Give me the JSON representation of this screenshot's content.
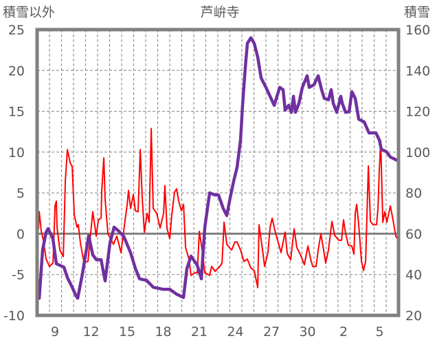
{
  "chart_data": {
    "type": "line",
    "title": "芦峅寺",
    "ylabel_left": "積雪以外",
    "ylabel_right": "積雪",
    "xlabel": "",
    "x_unit": "days since Dec 9",
    "xlim": [
      -1.49,
      28.57
    ],
    "ylim_left": [
      -10,
      25
    ],
    "ylim_right": [
      20,
      160
    ],
    "yticks_left": [
      "-10",
      "-5",
      "0",
      "5",
      "10",
      "15",
      "20",
      "25"
    ],
    "yticks_right": [
      "20",
      "40",
      "60",
      "80",
      "100",
      "120",
      "140",
      "160"
    ],
    "xticks": [
      {
        "label": "9",
        "x": 0
      },
      {
        "label": "12",
        "x": 3
      },
      {
        "label": "15",
        "x": 6
      },
      {
        "label": "18",
        "x": 9
      },
      {
        "label": "21",
        "x": 12
      },
      {
        "label": "24",
        "x": 15
      },
      {
        "label": "27",
        "x": 18
      },
      {
        "label": "30",
        "x": 21
      },
      {
        "label": "2",
        "x": 24
      },
      {
        "label": "5",
        "x": 27
      }
    ],
    "grid": true,
    "colors": {
      "left_series": "#ff0000",
      "right_series": "#7030a0",
      "frame": "#808080",
      "grid": "#808080"
    },
    "series": [
      {
        "name": "積雪以外",
        "axis": "left",
        "points": [
          [
            -1.49,
            1.7
          ],
          [
            -1.37,
            0.6
          ],
          [
            -1.31,
            2.7
          ],
          [
            -1.14,
            0.3
          ],
          [
            -0.97,
            -0.8
          ],
          [
            -0.74,
            -3.1
          ],
          [
            -0.46,
            -4
          ],
          [
            -0.17,
            -3.6
          ],
          [
            0,
            3.4
          ],
          [
            0.11,
            4
          ],
          [
            0.17,
            0.8
          ],
          [
            0.4,
            -2
          ],
          [
            0.69,
            -2.8
          ],
          [
            0.86,
            6.5
          ],
          [
            1.03,
            10.3
          ],
          [
            1.26,
            8.7
          ],
          [
            1.43,
            8.2
          ],
          [
            1.6,
            2.3
          ],
          [
            1.83,
            0.8
          ],
          [
            1.94,
            1.1
          ],
          [
            2.11,
            -1.1
          ],
          [
            2.4,
            -3.5
          ],
          [
            2.74,
            -3.4
          ],
          [
            3.14,
            2.7
          ],
          [
            3.43,
            -0.3
          ],
          [
            3.6,
            1.7
          ],
          [
            3.83,
            1.9
          ],
          [
            3.89,
            5.3
          ],
          [
            4.06,
            9.3
          ],
          [
            4.17,
            4.2
          ],
          [
            4.4,
            0
          ],
          [
            4.69,
            -0.8
          ],
          [
            4.86,
            -1.3
          ],
          [
            5.14,
            -0.3
          ],
          [
            5.49,
            -2.3
          ],
          [
            5.71,
            0.3
          ],
          [
            6,
            3.6
          ],
          [
            6.11,
            5.3
          ],
          [
            6.29,
            3.1
          ],
          [
            6.51,
            4.8
          ],
          [
            6.69,
            2.8
          ],
          [
            6.91,
            2.7
          ],
          [
            7.09,
            10.3
          ],
          [
            7.26,
            4.2
          ],
          [
            7.43,
            0.2
          ],
          [
            7.66,
            2.5
          ],
          [
            7.83,
            1.4
          ],
          [
            8,
            12.9
          ],
          [
            8.17,
            3.1
          ],
          [
            8.46,
            2.5
          ],
          [
            8.74,
            0.7
          ],
          [
            9.03,
            2.5
          ],
          [
            9.14,
            5.9
          ],
          [
            9.31,
            0.7
          ],
          [
            9.54,
            -0.6
          ],
          [
            9.71,
            2.3
          ],
          [
            9.94,
            5.1
          ],
          [
            10.11,
            5.5
          ],
          [
            10.29,
            4
          ],
          [
            10.51,
            2.8
          ],
          [
            10.69,
            3.6
          ],
          [
            10.86,
            -1.7
          ],
          [
            11.14,
            -3.1
          ],
          [
            11.31,
            -5.1
          ],
          [
            11.6,
            -4.8
          ],
          [
            11.83,
            -4.8
          ],
          [
            12,
            0.3
          ],
          [
            12.29,
            -2.5
          ],
          [
            12.46,
            -4.8
          ],
          [
            12.86,
            -5.1
          ],
          [
            13.03,
            -4
          ],
          [
            13.31,
            -4.6
          ],
          [
            13.71,
            -4
          ],
          [
            13.89,
            -3.6
          ],
          [
            14.06,
            1.4
          ],
          [
            14.29,
            -1.3
          ],
          [
            14.69,
            -2
          ],
          [
            14.97,
            -1
          ],
          [
            15.14,
            -1
          ],
          [
            15.43,
            -2
          ],
          [
            15.71,
            -3.4
          ],
          [
            16,
            -3.1
          ],
          [
            16.29,
            -4.2
          ],
          [
            16.57,
            -4.5
          ],
          [
            16.86,
            -6.6
          ],
          [
            16.97,
            1.1
          ],
          [
            17.26,
            -2
          ],
          [
            17.43,
            -4
          ],
          [
            17.71,
            -2.3
          ],
          [
            17.89,
            0.8
          ],
          [
            18.06,
            1.9
          ],
          [
            18.29,
            0.4
          ],
          [
            18.57,
            -1.1
          ],
          [
            18.8,
            -2.3
          ],
          [
            19.14,
            0.2
          ],
          [
            19.31,
            -2.4
          ],
          [
            19.6,
            -3.2
          ],
          [
            19.89,
            0.6
          ],
          [
            20.11,
            -1.7
          ],
          [
            20.4,
            -2.5
          ],
          [
            20.74,
            -3.8
          ],
          [
            21.03,
            -1.5
          ],
          [
            21.26,
            -3.1
          ],
          [
            21.43,
            -4
          ],
          [
            21.71,
            -4
          ],
          [
            21.89,
            -2
          ],
          [
            22.11,
            0
          ],
          [
            22.34,
            -2
          ],
          [
            22.51,
            -3.6
          ],
          [
            22.74,
            -2
          ],
          [
            23.03,
            1.5
          ],
          [
            23.26,
            -0.2
          ],
          [
            23.6,
            -0.8
          ],
          [
            23.83,
            -0.8
          ],
          [
            24,
            1.7
          ],
          [
            24.17,
            0
          ],
          [
            24.4,
            -1.4
          ],
          [
            24.69,
            -1.5
          ],
          [
            24.86,
            -2.5
          ],
          [
            24.97,
            2.5
          ],
          [
            25.09,
            3.6
          ],
          [
            25.26,
            1.1
          ],
          [
            25.49,
            -3.4
          ],
          [
            25.66,
            -4.5
          ],
          [
            25.83,
            -3.4
          ],
          [
            26.06,
            8.3
          ],
          [
            26.23,
            1.5
          ],
          [
            26.46,
            1.1
          ],
          [
            26.74,
            1.1
          ],
          [
            26.86,
            3.1
          ],
          [
            26.97,
            7.8
          ],
          [
            27.09,
            11.4
          ],
          [
            27.26,
            1.4
          ],
          [
            27.43,
            2.7
          ],
          [
            27.6,
            1.4
          ],
          [
            27.89,
            3.4
          ],
          [
            28.11,
            1.7
          ],
          [
            28.34,
            -0.3
          ],
          [
            28.51,
            -0.7
          ]
        ]
      },
      {
        "name": "積雪",
        "axis": "right",
        "points": [
          [
            -1.49,
            33.8
          ],
          [
            -1.31,
            28.4
          ],
          [
            -1.03,
            52
          ],
          [
            -0.74,
            60.8
          ],
          [
            -0.57,
            62.5
          ],
          [
            -0.17,
            57.4
          ],
          [
            0.11,
            45.3
          ],
          [
            0.74,
            43.6
          ],
          [
            1.03,
            38.5
          ],
          [
            1.43,
            33.8
          ],
          [
            1.71,
            30
          ],
          [
            1.89,
            28.4
          ],
          [
            2.29,
            40.6
          ],
          [
            2.57,
            50.7
          ],
          [
            2.8,
            59.1
          ],
          [
            3.14,
            49.7
          ],
          [
            3.43,
            47.3
          ],
          [
            3.83,
            47.3
          ],
          [
            4.17,
            36.9
          ],
          [
            4.57,
            55.4
          ],
          [
            4.91,
            63.2
          ],
          [
            5.26,
            61.5
          ],
          [
            5.71,
            58.8
          ],
          [
            6.29,
            50.7
          ],
          [
            6.69,
            42.9
          ],
          [
            7.03,
            37.9
          ],
          [
            7.6,
            37.2
          ],
          [
            8.17,
            33.8
          ],
          [
            8.97,
            32.8
          ],
          [
            9.54,
            32.8
          ],
          [
            10.11,
            30.4
          ],
          [
            10.69,
            28.8
          ],
          [
            10.97,
            42.9
          ],
          [
            11.31,
            49
          ],
          [
            11.83,
            44.6
          ],
          [
            12.17,
            37.9
          ],
          [
            12.46,
            63.2
          ],
          [
            12.86,
            80
          ],
          [
            13.31,
            79
          ],
          [
            13.6,
            79
          ],
          [
            14,
            72.3
          ],
          [
            14.29,
            68.9
          ],
          [
            14.57,
            77.7
          ],
          [
            14.86,
            85.8
          ],
          [
            15.14,
            92.5
          ],
          [
            15.43,
            106
          ],
          [
            15.6,
            122.9
          ],
          [
            15.83,
            141.8
          ],
          [
            16,
            153.3
          ],
          [
            16.29,
            156
          ],
          [
            16.57,
            153.3
          ],
          [
            16.86,
            146.5
          ],
          [
            17.14,
            136.4
          ],
          [
            17.54,
            131.7
          ],
          [
            17.89,
            127.3
          ],
          [
            18.23,
            122.9
          ],
          [
            18.46,
            127.3
          ],
          [
            18.69,
            131.7
          ],
          [
            18.97,
            130.6
          ],
          [
            19.14,
            120.5
          ],
          [
            19.43,
            122.9
          ],
          [
            19.66,
            119.5
          ],
          [
            19.83,
            127.3
          ],
          [
            20,
            119.5
          ],
          [
            20.29,
            123.9
          ],
          [
            20.57,
            131.7
          ],
          [
            20.97,
            137.4
          ],
          [
            21.14,
            131.7
          ],
          [
            21.54,
            133
          ],
          [
            21.89,
            137.4
          ],
          [
            22.17,
            130.6
          ],
          [
            22.4,
            126.3
          ],
          [
            22.74,
            125.6
          ],
          [
            22.97,
            130.6
          ],
          [
            23.14,
            123.9
          ],
          [
            23.43,
            119.5
          ],
          [
            23.77,
            127.3
          ],
          [
            23.89,
            123.9
          ],
          [
            24.17,
            119.5
          ],
          [
            24.46,
            119.8
          ],
          [
            24.69,
            129.6
          ],
          [
            24.97,
            126.3
          ],
          [
            25.26,
            116.1
          ],
          [
            25.71,
            114.8
          ],
          [
            26.11,
            109.4
          ],
          [
            26.69,
            109.4
          ],
          [
            26.97,
            106
          ],
          [
            27.14,
            101.3
          ],
          [
            27.54,
            100.3
          ],
          [
            27.89,
            97.6
          ],
          [
            28.46,
            95.9
          ]
        ]
      }
    ]
  }
}
